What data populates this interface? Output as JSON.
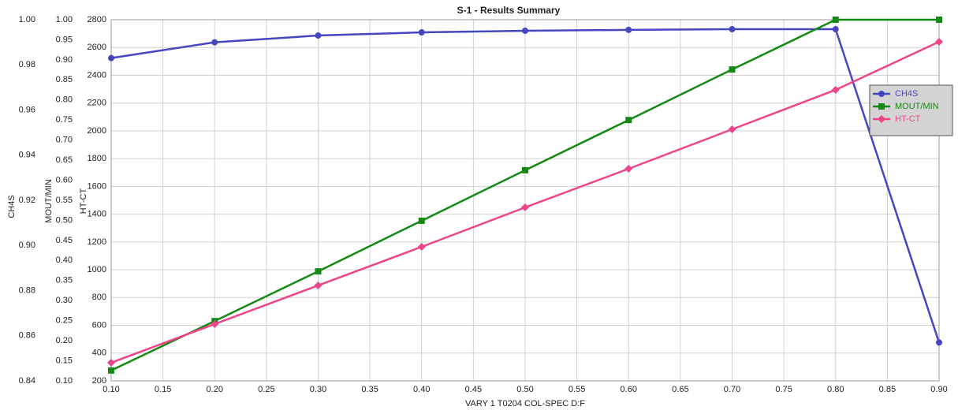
{
  "chart_data": {
    "type": "line",
    "title": "S-1 - Results Summary",
    "xlabel": "VARY  1 T0204    COL-SPEC D:F",
    "ylabel": "CH4S",
    "y2label": "MOUT/MIN",
    "y3label": "HT-CT",
    "x": [
      0.1,
      0.2,
      0.3,
      0.4,
      0.5,
      0.6,
      0.7,
      0.8,
      0.9
    ],
    "xlim": [
      0.1,
      0.9
    ],
    "xticks": [
      {
        "value": 0.1,
        "label": "0.10"
      },
      0.15,
      {
        "value": 0.2,
        "label": "0.20"
      },
      0.25,
      {
        "value": 0.3,
        "label": "0.30"
      },
      0.35,
      {
        "value": 0.4,
        "label": "0.40"
      },
      0.45,
      {
        "value": 0.5,
        "label": "0.50"
      },
      0.55,
      {
        "value": 0.6,
        "label": "0.60"
      },
      0.65,
      {
        "value": 0.7,
        "label": "0.70"
      },
      0.75,
      {
        "value": 0.8,
        "label": "0.80"
      },
      0.85,
      {
        "value": 0.9,
        "label": "0.90"
      }
    ],
    "ylim": [
      0.84,
      1.0
    ],
    "yticks": [
      0.84,
      0.86,
      0.88,
      {
        "value": 0.9,
        "label": "0.90"
      },
      0.92,
      0.94,
      0.96,
      0.98,
      {
        "value": 1.0,
        "label": "1.00"
      }
    ],
    "y2lim": [
      0.1,
      1.0
    ],
    "y2ticks": [
      {
        "value": 0.1,
        "label": "0.10"
      },
      0.15,
      {
        "value": 0.2,
        "label": "0.20"
      },
      0.25,
      {
        "value": 0.3,
        "label": "0.30"
      },
      0.35,
      {
        "value": 0.4,
        "label": "0.40"
      },
      0.45,
      {
        "value": 0.5,
        "label": "0.50"
      },
      0.55,
      {
        "value": 0.6,
        "label": "0.60"
      },
      0.65,
      {
        "value": 0.7,
        "label": "0.70"
      },
      0.75,
      {
        "value": 0.8,
        "label": "0.80"
      },
      0.85,
      {
        "value": 0.9,
        "label": "0.90"
      },
      0.95,
      {
        "value": 1.0,
        "label": "1.00"
      }
    ],
    "y3lim": [
      200,
      2800
    ],
    "y3ticks": [
      200,
      400,
      600,
      800,
      1000,
      1200,
      1400,
      1600,
      1800,
      2000,
      2200,
      2400,
      2600,
      2800
    ],
    "grid": true,
    "legend": "upper right",
    "series": [
      {
        "name": "CH4S",
        "color": "#4646c0",
        "marker": "circle",
        "axis": "y",
        "values": [
          0.983,
          0.99,
          0.993,
          0.9944,
          0.9951,
          0.9955,
          0.9958,
          0.9958,
          0.857
        ]
      },
      {
        "name": "MOUT/MIN",
        "color": "#138a13",
        "marker": "square",
        "axis": "y2",
        "values": [
          0.126,
          0.249,
          0.373,
          0.499,
          0.625,
          0.75,
          0.876,
          1.0,
          1.0
        ]
      },
      {
        "name": "HT-CT",
        "color": "#ee4488",
        "marker": "diamond",
        "axis": "y3",
        "values": [
          331,
          609,
          887,
          1165,
          1449,
          1727,
          2011,
          2295,
          2641
        ]
      }
    ]
  }
}
